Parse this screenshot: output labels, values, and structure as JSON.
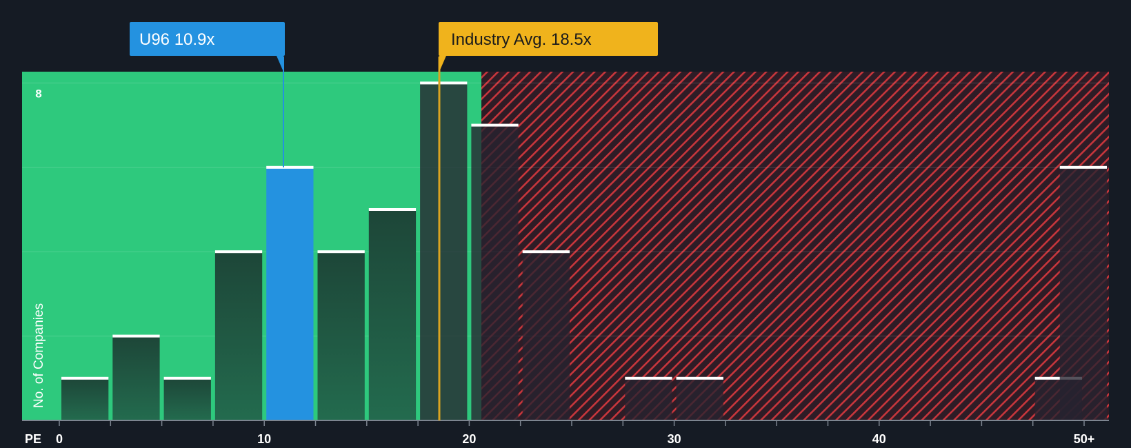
{
  "chart_data": {
    "type": "bar",
    "title": "",
    "xlabel": "PE",
    "ylabel": "No. of Companies",
    "xlim": [
      0,
      51.3
    ],
    "ylim": [
      0,
      8.3
    ],
    "x_ticks": [
      0,
      10,
      20,
      30,
      40,
      50
    ],
    "x_tick_labels": [
      "0",
      "10",
      "20",
      "30",
      "40",
      "50+"
    ],
    "y_tick_labels_shown": [
      8
    ],
    "bin_width": 2.5,
    "bins": [
      {
        "x": 2.5,
        "count": 1
      },
      {
        "x": 5,
        "count": 2
      },
      {
        "x": 7.5,
        "count": 1
      },
      {
        "x": 10,
        "count": 4
      },
      {
        "x": 12.5,
        "count": 6
      },
      {
        "x": 15,
        "count": 4
      },
      {
        "x": 17.5,
        "count": 5
      },
      {
        "x": 20,
        "count": 8
      },
      {
        "x": 22.5,
        "count": 7
      },
      {
        "x": 25,
        "count": 4
      },
      {
        "x": 27.5,
        "count": 0
      },
      {
        "x": 30,
        "count": 1
      },
      {
        "x": 32.5,
        "count": 1
      },
      {
        "x": 35,
        "count": 0
      },
      {
        "x": 37.5,
        "count": 0
      },
      {
        "x": 40,
        "count": 0
      },
      {
        "x": 42.5,
        "count": 0
      },
      {
        "x": 45,
        "count": 0
      },
      {
        "x": 47.5,
        "count": 0
      },
      {
        "x": 50,
        "count": 1
      },
      {
        "x": 52.5,
        "count": 6
      }
    ],
    "highlight_bin_x": 12.5,
    "fair_zone_max_pe": 18.0,
    "company": {
      "label": "U96 10.9x",
      "value": 10.9
    },
    "industry": {
      "label": "Industry Avg. 18.5x",
      "value": 18.5
    },
    "colors": {
      "background": "#151b24",
      "fair_zone": "#2ec97d",
      "overvalued_hatch": "#d23a3f",
      "company": "#2492e0",
      "industry": "#f0b31c",
      "bar_cap": "#ffffff"
    }
  }
}
